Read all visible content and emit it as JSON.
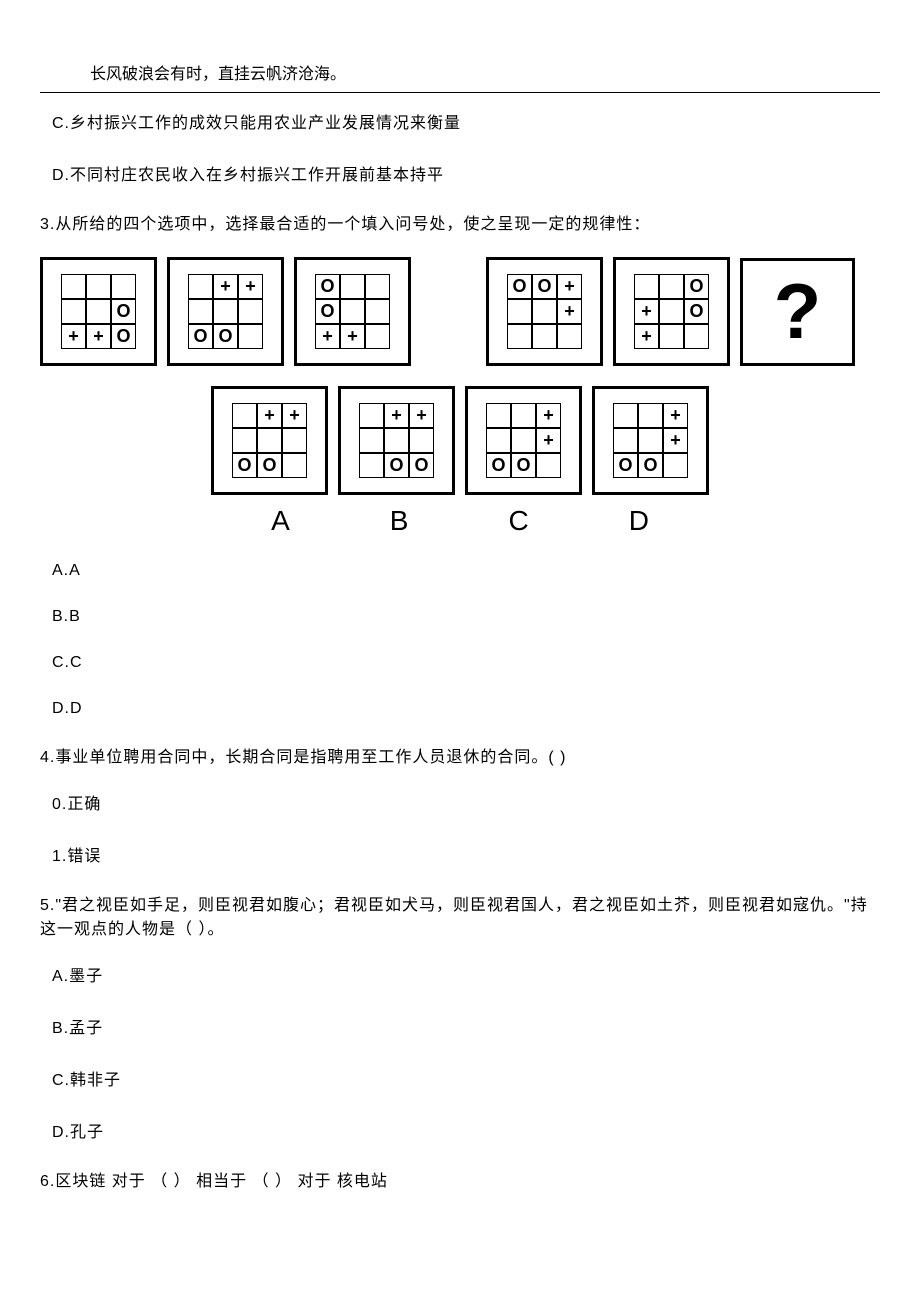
{
  "header_quote": "长风破浪会有时，直挂云帆济沧海。",
  "q2": {
    "optC": "C.乡村振兴工作的成效只能用农业产业发展情况来衡量",
    "optD": "D.不同村庄农民收入在乡村振兴工作开展前基本持平"
  },
  "q3": {
    "stem": "3.从所给的四个选项中，选择最合适的一个填入问号处，使之呈现一定的规律性：",
    "optA": "A.A",
    "optB": "B.B",
    "optC": "C.C",
    "optD": "D.D",
    "labels": {
      "a": "A",
      "b": "B",
      "c": "C",
      "d": "D"
    },
    "diagrams": {
      "top1": [
        "",
        "",
        "",
        "",
        "",
        "O",
        "+",
        "+",
        "O"
      ],
      "top2": [
        "",
        "+",
        "+",
        "",
        "",
        "",
        "O",
        "O",
        ""
      ],
      "top3": [
        "O",
        "",
        "",
        "O",
        "",
        "",
        "+",
        "+",
        ""
      ],
      "top4": [
        "O",
        "O",
        "+",
        "",
        "",
        "+",
        "",
        "",
        ""
      ],
      "top5": [
        "",
        "",
        "O",
        "+",
        "",
        "O",
        "+",
        "",
        ""
      ],
      "ansA": [
        "",
        "+",
        "+",
        "",
        "",
        "",
        "O",
        "O",
        ""
      ],
      "ansB": [
        "",
        "+",
        "+",
        "",
        "",
        "",
        "",
        "O",
        "O"
      ],
      "ansC": [
        "",
        "",
        "+",
        "",
        "",
        "+",
        "O",
        "O",
        ""
      ],
      "ansD": [
        "",
        "",
        "+",
        "",
        "",
        "+",
        "O",
        "O",
        ""
      ]
    },
    "qmark": "?"
  },
  "q4": {
    "stem": "4.事业单位聘用合同中，长期合同是指聘用至工作人员退休的合同。( )",
    "opt0": "0.正确",
    "opt1": "1.错误"
  },
  "q5": {
    "stem": "5.\"君之视臣如手足，则臣视君如腹心；君视臣如犬马，则臣视君国人，君之视臣如土芥，则臣视君如寇仇。\"持这一观点的人物是（  ）。",
    "optA": "A.墨子",
    "optB": "B.孟子",
    "optC": "C.韩非子",
    "optD": "D.孔子"
  },
  "q6": {
    "stem": "6.区块链  对于  （        ） 相当于  （        ）  对于  核电站"
  }
}
